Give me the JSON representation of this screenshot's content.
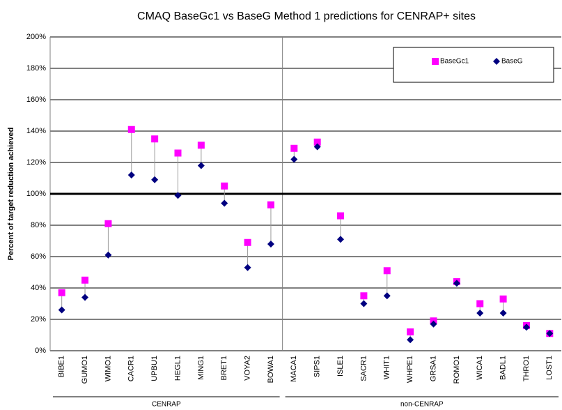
{
  "chart_data": {
    "type": "dot-range",
    "title": "CMAQ BaseGc1 vs BaseG Method 1 predictions for CENRAP+ sites",
    "y_label": "Percent of target reduction achieved",
    "categories": [
      "BIBE1",
      "GUMO1",
      "WIMO1",
      "CACR1",
      "UPBU1",
      "HEGL1",
      "MING1",
      "BRET1",
      "VOYA2",
      "BOWA1",
      "MACA1",
      "SIPS1",
      "ISLE1",
      "SACR1",
      "WHIT1",
      "WHPE1",
      "GRSA1",
      "ROMO1",
      "WICA1",
      "BADL1",
      "THRO1",
      "LOST1"
    ],
    "groups": [
      {
        "label": "CENRAP",
        "size": 10
      },
      {
        "label": "non-CENRAP",
        "size": 12
      }
    ],
    "series": [
      {
        "name": "BaseGc1",
        "color": "#ff00ff",
        "marker": "square",
        "values": [
          37,
          45,
          81,
          141,
          135,
          126,
          131,
          105,
          69,
          93,
          129,
          133,
          86,
          35,
          51,
          12,
          19,
          44,
          30,
          33,
          16,
          11
        ]
      },
      {
        "name": "BaseG",
        "color": "#000080",
        "marker": "diamond",
        "values": [
          26,
          34,
          61,
          112,
          109,
          99,
          118,
          94,
          53,
          68,
          122,
          130,
          71,
          30,
          35,
          7,
          17,
          43,
          24,
          24,
          15,
          11
        ]
      }
    ],
    "reference_line": 100,
    "ylim": [
      0,
      200
    ],
    "yticks": [
      {
        "value": 0,
        "label": "0%"
      },
      {
        "value": 20,
        "label": "20%"
      },
      {
        "value": 40,
        "label": "40%"
      },
      {
        "value": 60,
        "label": "60%"
      },
      {
        "value": 80,
        "label": "80%"
      },
      {
        "value": 100,
        "label": "100%"
      },
      {
        "value": 120,
        "label": "120%"
      },
      {
        "value": 140,
        "label": "140%"
      },
      {
        "value": 160,
        "label": "160%"
      },
      {
        "value": 180,
        "label": "180%"
      },
      {
        "value": 200,
        "label": "200%"
      }
    ],
    "grid": true,
    "legend": "top-right"
  }
}
